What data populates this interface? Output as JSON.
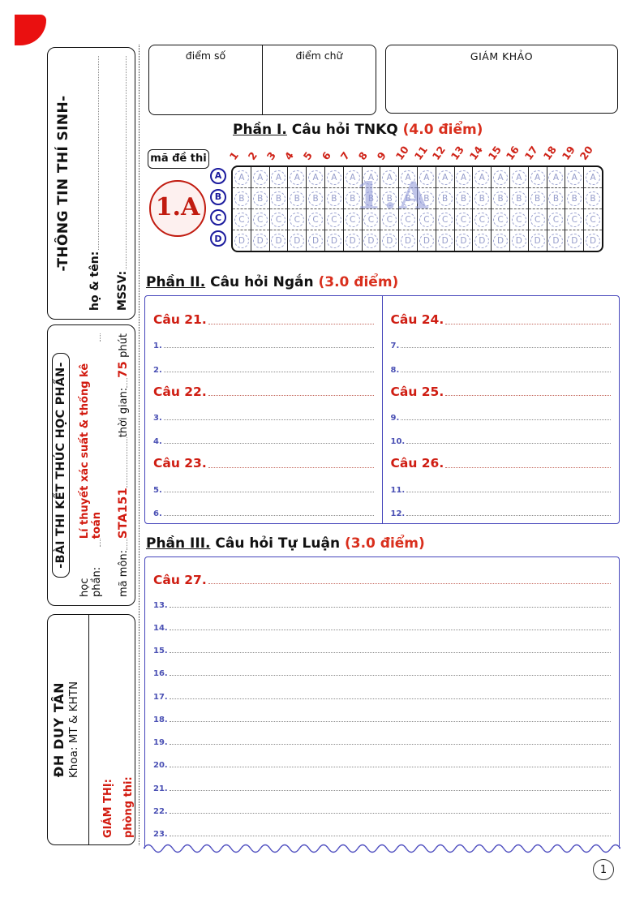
{
  "colors": {
    "accent_red": "#d21b10",
    "logo_red": "#ea1010",
    "navy": "#1c1c9e",
    "box_blue": "#4545bb",
    "bubble_blue": "#9aa0d2",
    "line_number_blue": "#4a50b4",
    "watermark_blue": "#8d96d8"
  },
  "grading": {
    "score_number_label": "điểm số",
    "score_text_label": "điểm chữ",
    "examiner_label": "GIÁM KHẢO"
  },
  "student_info": {
    "title": "-THÔNG TIN THÍ SINH-",
    "name_label": "họ & tên:",
    "id_label": "MSSV:"
  },
  "exam_info": {
    "title": "-BÀI THI KẾT THÚC HỌC PHẦN-",
    "course_label": "học phần:",
    "course_value": "Lí thuyết xác suất & thống kê toán",
    "code_label": "mã môn:",
    "code_value": "STA151",
    "duration_label": "thời gian:",
    "duration_value": "75",
    "duration_unit": "phút"
  },
  "university": {
    "name": "ĐH DUY TÂN",
    "faculty": "Khoa: MT & KHTN",
    "proctor_label": "GIÁM THỊ:",
    "room_label": "phòng thi:"
  },
  "part1": {
    "heading_prefix": "Phần I.",
    "heading_main": "Câu hỏi TNKQ",
    "heading_points": "(4.0 điểm)",
    "exam_code_label": "mã đề thi",
    "exam_code": "1.A",
    "watermark": "1.A",
    "choices": [
      "A",
      "B",
      "C",
      "D"
    ],
    "questions": [
      "1",
      "2",
      "3",
      "4",
      "5",
      "6",
      "7",
      "8",
      "9",
      "10",
      "11",
      "12",
      "13",
      "14",
      "15",
      "16",
      "17",
      "18",
      "19",
      "20"
    ]
  },
  "part2": {
    "heading_prefix": "Phần II.",
    "heading_main": "Câu hỏi Ngắn",
    "heading_points": "(3.0 điểm)",
    "left_rows": [
      "Câu 21.",
      "1.",
      "2.",
      "Câu 22.",
      "3.",
      "4.",
      "Câu 23.",
      "5.",
      "6."
    ],
    "right_rows": [
      "Câu 24.",
      "7.",
      "8.",
      "Câu 25.",
      "9.",
      "10.",
      "Câu 26.",
      "11.",
      "12."
    ]
  },
  "part3": {
    "heading_prefix": "Phần III.",
    "heading_main": "Câu hỏi Tự Luận",
    "heading_points": "(3.0 điểm)",
    "rows": [
      "Câu 27.",
      "13.",
      "14.",
      "15.",
      "16.",
      "17.",
      "18.",
      "19.",
      "20.",
      "21.",
      "22.",
      "23."
    ]
  },
  "page": {
    "number": "1"
  }
}
